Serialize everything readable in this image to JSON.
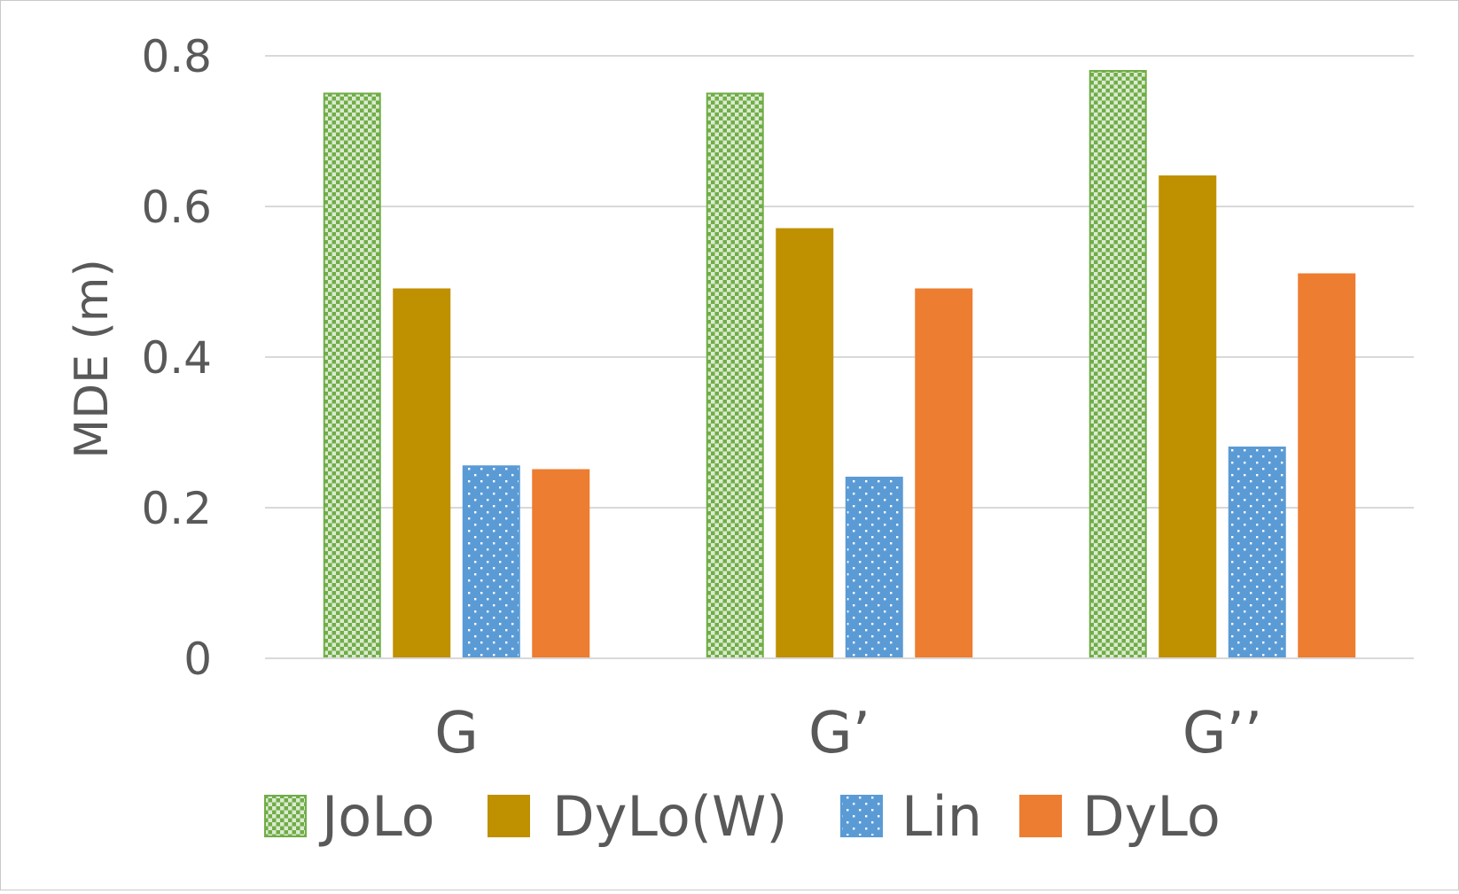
{
  "chart_data": {
    "type": "bar",
    "categories": [
      "G",
      "G’",
      "G’’"
    ],
    "series": [
      {
        "name": "JoLo",
        "values": [
          0.75,
          0.75,
          0.78
        ],
        "color": "#70ad47",
        "pattern": "checker"
      },
      {
        "name": "DyLo(W)",
        "values": [
          0.49,
          0.57,
          0.64
        ],
        "color": "#bf9000",
        "pattern": "solid"
      },
      {
        "name": "Lin",
        "values": [
          0.255,
          0.24,
          0.28
        ],
        "color": "#5b9bd5",
        "pattern": "dots"
      },
      {
        "name": "DyLo",
        "values": [
          0.25,
          0.49,
          0.51
        ],
        "color": "#ed7d31",
        "pattern": "solid"
      }
    ],
    "title": "",
    "xlabel": "",
    "ylabel": "MDE (m)",
    "ylim": [
      0,
      0.8
    ],
    "yticks": [
      "0",
      "0.2",
      "0.4",
      "0.6",
      "0.8"
    ],
    "grid": true,
    "legend": "bottom"
  }
}
